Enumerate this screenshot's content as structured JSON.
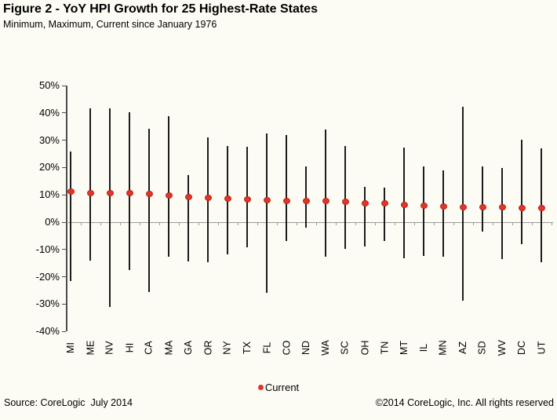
{
  "legend": {
    "label": "Current"
  },
  "footer": {
    "source": "Source: CoreLogic  July 2014",
    "copyright": "©2014 CoreLogic, Inc. All rights reserved"
  },
  "colors": {
    "current_dot": "#e0352b",
    "range_line": "#1c1c1c",
    "axis": "#4d4d4d",
    "zero_line": "#9a9a9a",
    "background": "#fcfcf4"
  },
  "chart_data": {
    "type": "scatter",
    "subtype": "min-max range bars with current-value dot",
    "title": "Figure 2 - YoY HPI Growth for 25 Highest-Rate States",
    "subtitle": "Minimum, Maximum, Current since January 1976",
    "xlabel": "",
    "ylabel": "",
    "ylim": [
      -40,
      50
    ],
    "y_ticks": [
      50,
      40,
      30,
      20,
      10,
      0,
      -10,
      -20,
      -30,
      -40
    ],
    "y_tick_labels": [
      "50%",
      "40%",
      "30%",
      "20%",
      "10%",
      "0%",
      "-10%",
      "-20%",
      "-30%",
      "-40%"
    ],
    "grid": false,
    "legend_position": "bottom-center",
    "categories": [
      "MI",
      "ME",
      "NV",
      "HI",
      "CA",
      "MA",
      "GA",
      "OR",
      "NY",
      "TX",
      "FL",
      "CO",
      "ND",
      "WA",
      "SC",
      "OH",
      "TN",
      "MT",
      "IL",
      "MN",
      "AZ",
      "SD",
      "WV",
      "DC",
      "UT"
    ],
    "series": [
      {
        "name": "Maximum",
        "values": [
          26.0,
          41.8,
          41.6,
          40.3,
          34.3,
          38.8,
          17.3,
          30.9,
          28.0,
          27.5,
          32.4,
          31.8,
          20.5,
          33.8,
          28.0,
          13.0,
          12.7,
          27.2,
          20.5,
          19.1,
          42.3,
          20.5,
          19.7,
          30.1,
          26.9
        ]
      },
      {
        "name": "Minimum",
        "values": [
          -21.5,
          -14.1,
          -30.9,
          -17.4,
          -25.6,
          -12.6,
          -14.5,
          -14.8,
          -11.8,
          -9.2,
          -25.9,
          -7.0,
          -2.0,
          -12.6,
          -9.9,
          -9.0,
          -7.0,
          -13.1,
          -12.4,
          -12.6,
          -28.8,
          -3.5,
          -13.4,
          -8.0,
          -14.8
        ]
      },
      {
        "name": "Current",
        "values": [
          11.2,
          10.5,
          10.5,
          10.5,
          10.4,
          9.7,
          9.3,
          8.9,
          8.6,
          8.3,
          8.0,
          7.9,
          7.9,
          7.8,
          7.6,
          7.0,
          6.9,
          6.4,
          5.9,
          5.8,
          5.6,
          5.5,
          5.4,
          5.2,
          5.1
        ]
      }
    ]
  }
}
